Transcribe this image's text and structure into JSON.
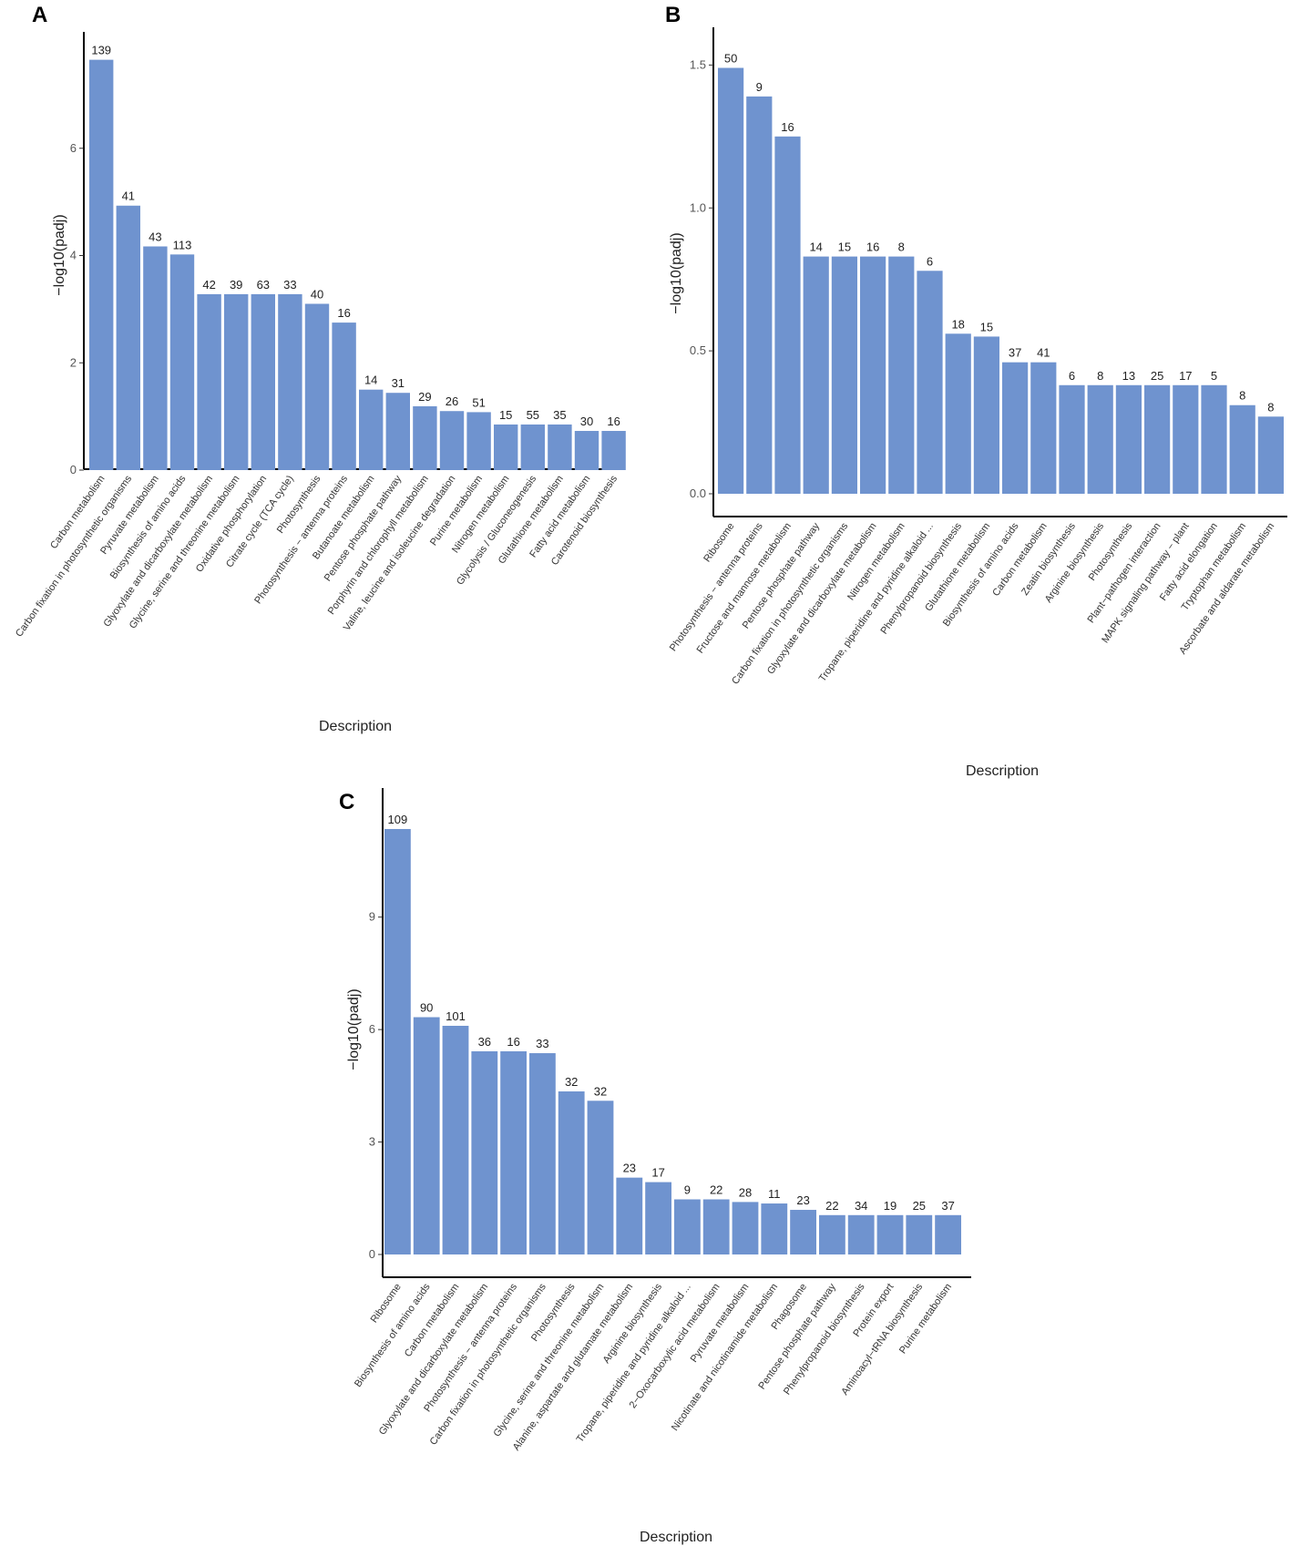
{
  "bar_color": "#6f93cf",
  "axis_color": "#000000",
  "chart_data": [
    {
      "panel": "A",
      "type": "bar",
      "xlabel": "Description",
      "ylabel": "−log10(padj)",
      "ylim": [
        0,
        8
      ],
      "yticks": [
        0,
        2,
        4,
        6
      ],
      "categories": [
        "Carbon metabolism",
        "Carbon fixation in photosynthetic organisms",
        "Pyruvate metabolism",
        "Biosynthesis of amino acids",
        "Glyoxylate and dicarboxylate metabolism",
        "Glycine, serine and threonine metabolism",
        "Oxidative phosphorylation",
        "Citrate cycle (TCA cycle)",
        "Photosynthesis",
        "Photosynthesis − antenna proteins",
        "Butanoate metabolism",
        "Pentose phosphate pathway",
        "Porphyrin and chlorophyll metabolism",
        "Valine, leucine and isoleucine degradation",
        "Purine metabolism",
        "Nitrogen metabolism",
        "Glycolysis / Gluconeogenesis",
        "Glutathione metabolism",
        "Fatty acid metabolism",
        "Carotenoid biosynthesis"
      ],
      "values": [
        7.65,
        4.93,
        4.17,
        4.02,
        3.28,
        3.28,
        3.28,
        3.28,
        3.1,
        2.75,
        1.5,
        1.44,
        1.19,
        1.1,
        1.08,
        0.85,
        0.85,
        0.85,
        0.73,
        0.73
      ],
      "bar_labels": [
        "139",
        "41",
        "43",
        "113",
        "42",
        "39",
        "63",
        "33",
        "40",
        "16",
        "14",
        "31",
        "29",
        "26",
        "51",
        "15",
        "55",
        "35",
        "30",
        "16"
      ]
    },
    {
      "panel": "B",
      "type": "bar",
      "xlabel": "Description",
      "ylabel": "−log10(padj)",
      "ylim": [
        0,
        1.6
      ],
      "yticks": [
        "0.0",
        "0.5",
        "1.0",
        "1.5"
      ],
      "categories": [
        "Ribosome",
        "Photosynthesis − antenna proteins",
        "Fructose and mannose metabolism",
        "Pentose phosphate pathway",
        "Carbon fixation in photosynthetic organisms",
        "Glyoxylate and dicarboxylate metabolism",
        "Nitrogen metabolism",
        "Tropane, piperidine and pyridine alkaloid ...",
        "Phenylpropanoid biosynthesis",
        "Glutathione metabolism",
        "Biosynthesis of amino acids",
        "Carbon metabolism",
        "Zeatin biosynthesis",
        "Arginine biosynthesis",
        "Photosynthesis",
        "Plant−pathogen interaction",
        "MAPK signaling pathway − plant",
        "Fatty acid elongation",
        "Tryptophan metabolism",
        "Ascorbate and aldarate metabolism"
      ],
      "values": [
        1.49,
        1.39,
        1.25,
        0.83,
        0.83,
        0.83,
        0.83,
        0.78,
        0.56,
        0.55,
        0.46,
        0.46,
        0.38,
        0.38,
        0.38,
        0.38,
        0.38,
        0.38,
        0.31,
        0.27
      ],
      "bar_labels": [
        "50",
        "9",
        "16",
        "14",
        "15",
        "16",
        "8",
        "6",
        "18",
        "15",
        "37",
        "41",
        "6",
        "8",
        "13",
        "25",
        "17",
        "5",
        "8",
        "8"
      ]
    },
    {
      "panel": "C",
      "type": "bar",
      "xlabel": "Description",
      "ylabel": "−log10(padj)",
      "ylim": [
        0,
        12.2
      ],
      "yticks": [
        0,
        3,
        6,
        9
      ],
      "categories": [
        "Ribosome",
        "Biosynthesis of amino acids",
        "Carbon metabolism",
        "Glyoxylate and dicarboxylate metabolism",
        "Photosynthesis − antenna proteins",
        "Carbon fixation in photosynthetic organisms",
        "Photosynthesis",
        "Glycine, serine and threonine metabolism",
        "Alanine, aspartate and glutamate metabolism",
        "Arginine biosynthesis",
        "Tropane, piperidine and pyridine alkaloid ...",
        "2−Oxocarboxylic acid metabolism",
        "Pyruvate metabolism",
        "Nicotinate and nicotinamide metabolism",
        "Phagosome",
        "Pentose phosphate pathway",
        "Phenylpropanoid biosynthesis",
        "Protein export",
        "Aminoacyl−tRNA biosynthesis",
        "Purine metabolism"
      ],
      "values": [
        11.35,
        6.33,
        6.1,
        5.42,
        5.42,
        5.37,
        4.35,
        4.1,
        2.05,
        1.93,
        1.47,
        1.47,
        1.4,
        1.36,
        1.19,
        1.05,
        1.05,
        1.05,
        1.05,
        1.05
      ],
      "bar_labels": [
        "109",
        "90",
        "101",
        "36",
        "16",
        "33",
        "32",
        "32",
        "23",
        "17",
        "9",
        "22",
        "28",
        "11",
        "23",
        "22",
        "34",
        "19",
        "25",
        "37"
      ]
    }
  ]
}
